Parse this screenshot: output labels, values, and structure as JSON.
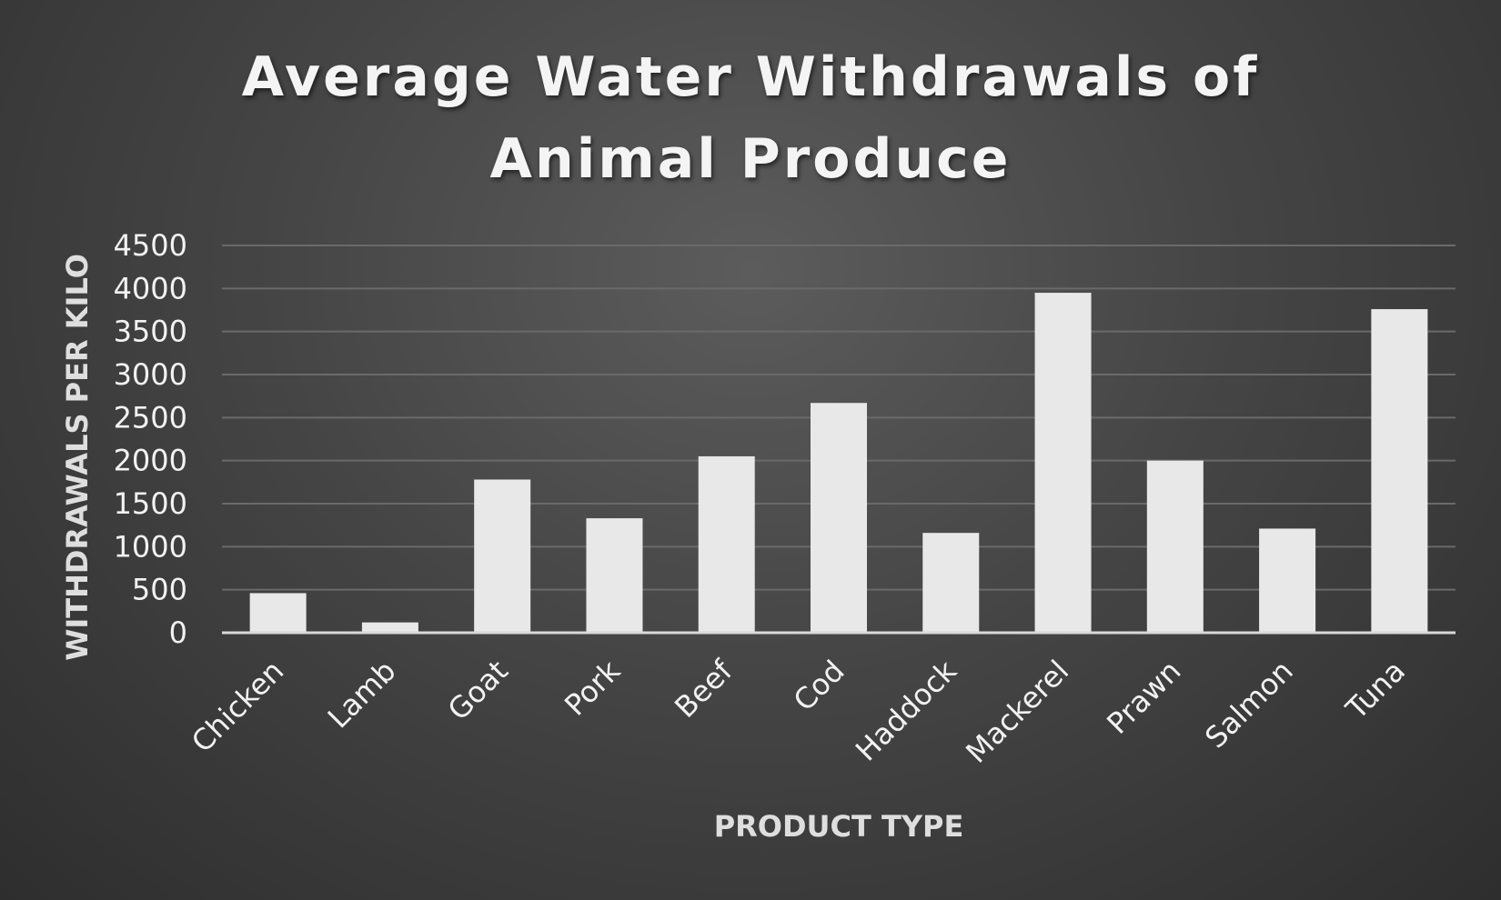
{
  "chart_data": {
    "type": "bar",
    "title": "Average Water Withdrawals of Animal Produce",
    "xlabel": "PRODUCT TYPE",
    "ylabel": "WITHDRAWALS PER KILO",
    "categories": [
      "Chicken",
      "Lamb",
      "Goat",
      "Pork",
      "Beef",
      "Cod",
      "Haddock",
      "Mackerel",
      "Prawn",
      "Salmon",
      "Tuna"
    ],
    "values": [
      460,
      120,
      1780,
      1330,
      2050,
      2670,
      1160,
      3950,
      2000,
      1210,
      3760
    ],
    "ylim": [
      0,
      4500
    ],
    "yticks": [
      0,
      500,
      1000,
      1500,
      2000,
      2500,
      3000,
      3500,
      4000,
      4500
    ],
    "grid": true,
    "legend": "none",
    "colors": {
      "bar": "#e8e8e8",
      "grid": "#6a6a6a",
      "axis": "#d9d9d9",
      "text": "#f2f2f2"
    }
  }
}
